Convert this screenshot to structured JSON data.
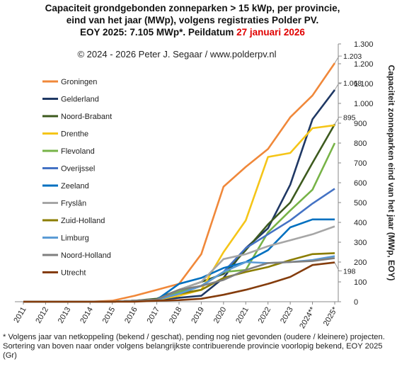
{
  "chart_data": {
    "type": "line",
    "title": [
      "Capaciteit grondgebonden  zonneparken > 15 kWp, per provincie,",
      "eind van het jaar (MWp), volgens registraties Polder PV.",
      "EOY 2025: 7.105 MWp*. Peildatum "
    ],
    "title_date": "27 januari 2026",
    "subtitle": "© 2024 - 2026 Peter J. Segaar / www.polderpv.nl",
    "y_label": "Capaciteit zonneparken eind van het jaar (MWp, EOY)",
    "footnote": "* Volgens jaar van netkoppeling (bekend / geschat), pending nog niet gevonden (oudere / kleinere) projecten. Sortering van boven naar onder volgens belangrijkste contribuerende provincie voorlopig bekend, EOY 2025 (Gr)",
    "categories": [
      "2011",
      "2012",
      "2013",
      "2014",
      "2015",
      "2016",
      "2017",
      "2018",
      "2019",
      "2020",
      "2021",
      "2022",
      "2023",
      "2024**",
      "2025*"
    ],
    "ylim": [
      0,
      1300
    ],
    "yticks": [
      0,
      100,
      200,
      300,
      400,
      500,
      600,
      700,
      800,
      900,
      {
        "value": 1000,
        "label": "1.000"
      },
      {
        "value": 1100,
        "label": "1.100"
      },
      {
        "value": 1200,
        "label": "1.200"
      },
      {
        "value": 1300,
        "label": "1.300"
      }
    ],
    "annotations": [
      {
        "label": "1.203",
        "value": 1203
      },
      {
        "label": "1.068",
        "value": 1068
      },
      {
        "label": "895",
        "value": 895
      },
      {
        "label": "198",
        "value": 198
      }
    ],
    "series": [
      {
        "name": "Groningen",
        "color": "#f0883a",
        "values": [
          0,
          0,
          0,
          0,
          5,
          30,
          60,
          90,
          240,
          580,
          680,
          770,
          930,
          1040,
          1203
        ]
      },
      {
        "name": "Gelderland",
        "color": "#1f3864",
        "values": [
          0,
          0,
          0,
          0,
          0,
          5,
          10,
          20,
          30,
          120,
          270,
          370,
          590,
          920,
          1068
        ]
      },
      {
        "name": "Noord-Brabant",
        "color": "#3d5a1e",
        "values": [
          0,
          0,
          0,
          0,
          0,
          5,
          15,
          60,
          100,
          140,
          260,
          390,
          500,
          700,
          895
        ]
      },
      {
        "name": "Drenthe",
        "color": "#f5c518",
        "values": [
          0,
          0,
          0,
          0,
          0,
          5,
          10,
          30,
          60,
          250,
          410,
          730,
          750,
          875,
          890
        ]
      },
      {
        "name": "Flevoland",
        "color": "#77b347",
        "values": [
          0,
          0,
          0,
          0,
          0,
          5,
          10,
          50,
          80,
          150,
          160,
          350,
          460,
          565,
          800
        ]
      },
      {
        "name": "Overijssel",
        "color": "#4472c4",
        "values": [
          0,
          0,
          0,
          0,
          0,
          5,
          10,
          40,
          80,
          150,
          270,
          340,
          410,
          495,
          570
        ]
      },
      {
        "name": "Zeeland",
        "color": "#0070c0",
        "values": [
          0,
          0,
          0,
          0,
          0,
          5,
          10,
          90,
          120,
          170,
          200,
          260,
          375,
          415,
          415
        ]
      },
      {
        "name": "Fryslân",
        "color": "#a6a6a6",
        "values": [
          0,
          0,
          0,
          0,
          0,
          5,
          10,
          60,
          100,
          215,
          240,
          280,
          310,
          340,
          380
        ]
      },
      {
        "name": "Zuid-Holland",
        "color": "#8b7d00",
        "values": [
          0,
          0,
          0,
          0,
          0,
          5,
          10,
          40,
          60,
          120,
          150,
          175,
          210,
          240,
          245
        ]
      },
      {
        "name": "Limburg",
        "color": "#5b9bd5",
        "values": [
          0,
          0,
          0,
          0,
          0,
          5,
          10,
          40,
          80,
          150,
          200,
          195,
          200,
          210,
          230
        ]
      },
      {
        "name": "Noord-Holland",
        "color": "#7f7f7f",
        "values": [
          0,
          0,
          0,
          0,
          0,
          5,
          10,
          60,
          80,
          110,
          160,
          195,
          200,
          205,
          220
        ]
      },
      {
        "name": "Utrecht",
        "color": "#843c0c",
        "values": [
          0,
          0,
          0,
          0,
          0,
          0,
          5,
          8,
          15,
          35,
          60,
          90,
          125,
          185,
          198
        ]
      }
    ]
  }
}
